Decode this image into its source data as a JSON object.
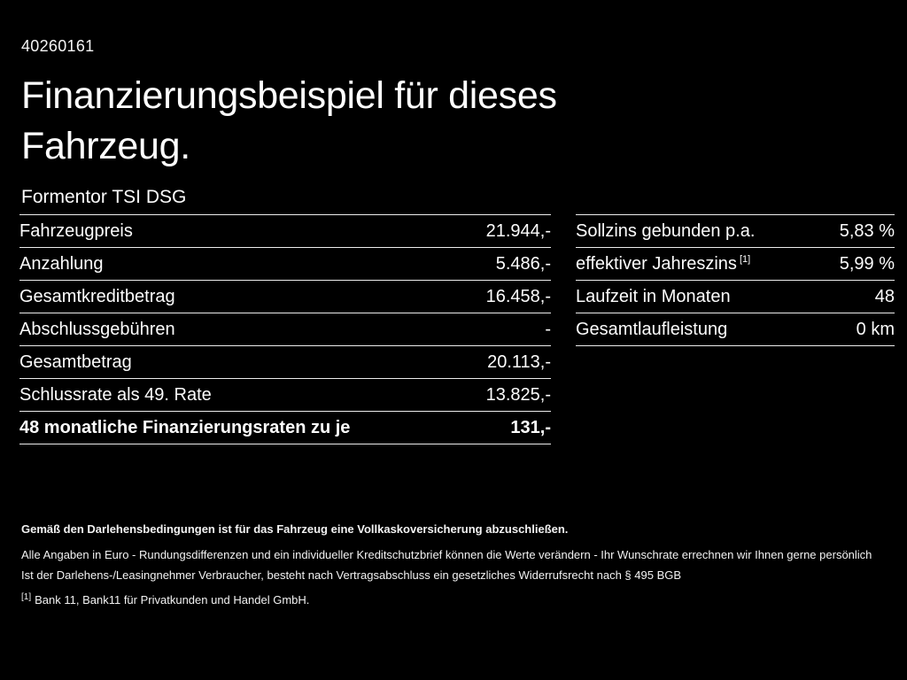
{
  "theme": {
    "background": "#000000",
    "text": "#ffffff",
    "divider": "#ececec"
  },
  "page": {
    "id_number": "40260161",
    "title_line1": "Finanzierungsbeispiel für dieses",
    "title_line2": "Fahrzeug.",
    "subtitle": "Formentor TSI DSG"
  },
  "left_table": {
    "rows": [
      {
        "label": "Fahrzeugpreis",
        "value": "21.944,-"
      },
      {
        "label": "Anzahlung",
        "value": "5.486,-"
      },
      {
        "label": "Gesamtkreditbetrag",
        "value": "16.458,-"
      },
      {
        "label": "Abschlussgebühren",
        "value": "-"
      },
      {
        "label": "Gesamtbetrag",
        "value": "20.113,-"
      },
      {
        "label": "Schlussrate als 49. Rate",
        "value": "13.825,-"
      },
      {
        "label": "48 monatliche Finanzierungsraten zu je",
        "value": "131,-"
      }
    ]
  },
  "right_table": {
    "rows": [
      {
        "label": "Sollzins gebunden p.a.",
        "sup": "",
        "value": "5,83 %"
      },
      {
        "label": "effektiver Jahreszins",
        "sup": "[1]",
        "value": "5,99 %"
      },
      {
        "label": "Laufzeit in Monaten",
        "sup": "",
        "value": "48"
      },
      {
        "label": "Gesamtlaufleistung",
        "sup": "",
        "value": "0 km"
      }
    ]
  },
  "footer": {
    "line1": "Gemäß den Darlehensbedingungen ist für das Fahrzeug eine Vollkaskoversicherung abzuschließen.",
    "line2": "Alle Angaben in Euro - Rundungsdifferenzen und ein individueller Kreditschutzbrief können die Werte verändern - Ihr Wunschrate errechnen wir Ihnen gerne persönlich",
    "line3": "Ist der Darlehens-/Leasingnehmer Verbraucher, besteht nach Vertragsabschluss ein gesetzliches Widerrufsrecht nach § 495 BGB",
    "footnote_marker": "[1]",
    "footnote_text": "Bank 11, Bank11 für Privatkunden und Handel GmbH."
  }
}
